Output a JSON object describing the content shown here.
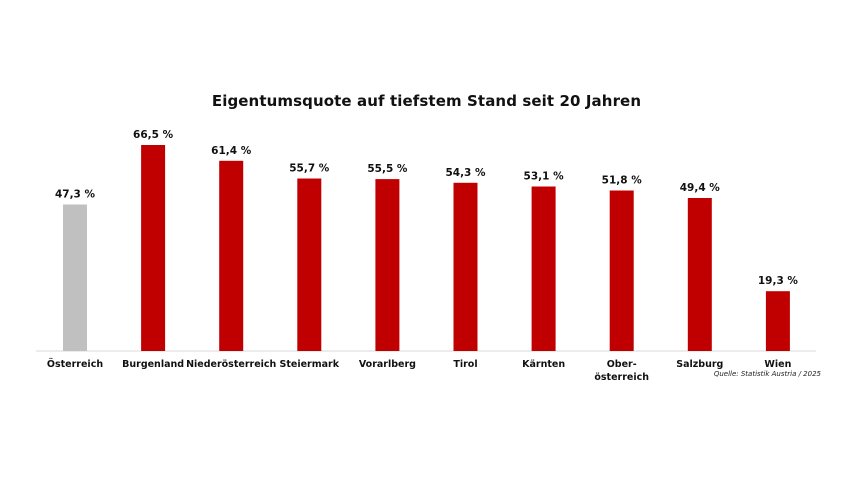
{
  "chart_data": {
    "type": "bar",
    "title": "Eigentumsquote auf tiefstem Stand seit 20 Jahren",
    "categories": [
      "Österreich",
      "Burgenland",
      "Niederösterreich",
      "Steiermark",
      "Vorarlberg",
      "Tirol",
      "Kärnten",
      "Ober-österreich",
      "Salzburg",
      "Wien"
    ],
    "category_lines": [
      [
        "Österreich"
      ],
      [
        "Burgenland"
      ],
      [
        "Niederösterreich"
      ],
      [
        "Steiermark"
      ],
      [
        "Vorarlberg"
      ],
      [
        "Tirol"
      ],
      [
        "Kärnten"
      ],
      [
        "Ober-",
        "österreich"
      ],
      [
        "Salzburg"
      ],
      [
        "Wien"
      ]
    ],
    "values": [
      47.3,
      66.5,
      61.4,
      55.7,
      55.5,
      54.3,
      53.1,
      51.8,
      49.4,
      19.3
    ],
    "data_labels": [
      "47,3 %",
      "66,5 %",
      "61,4 %",
      "55,7 %",
      "55,5 %",
      "54,3 %",
      "53,1 %",
      "51,8 %",
      "49,4 %",
      "19,3 %"
    ],
    "colors": [
      "#c0c0c0",
      "#c00000",
      "#c00000",
      "#c00000",
      "#c00000",
      "#c00000",
      "#c00000",
      "#c00000",
      "#c00000",
      "#c00000"
    ],
    "xlabel": "",
    "ylabel": "",
    "ylim": [
      0,
      70
    ],
    "grid": false,
    "legend": "none"
  },
  "source": "Quelle: Statistik Austria / 2025"
}
